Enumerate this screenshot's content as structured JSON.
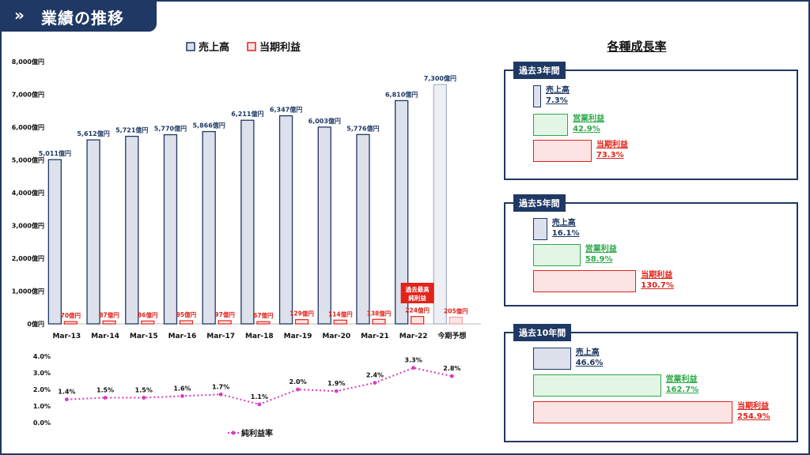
{
  "header": {
    "title": "業績の推移",
    "icon": "chevrons-right-icon"
  },
  "legend": {
    "sales": "売上高",
    "profit": "当期利益",
    "margin": "純利益率"
  },
  "annotation": {
    "line1": "過去最高",
    "line2": "純利益"
  },
  "colors": {
    "navy": "#1f3864",
    "sales_fill": "#dde1ec",
    "profit_stroke": "#e2231a",
    "profit_fill": "#fde4e4",
    "margin_line": "#d83ac4",
    "green": "#2ea84a",
    "green_fill": "#e3f6e6"
  },
  "chart_data": [
    {
      "type": "bar",
      "categories": [
        "Mar-13",
        "Mar-14",
        "Mar-15",
        "Mar-16",
        "Mar-17",
        "Mar-18",
        "Mar-19",
        "Mar-20",
        "Mar-21",
        "Mar-22",
        "今期予想"
      ],
      "series": [
        {
          "name": "売上高",
          "values": [
            5011,
            5612,
            5721,
            5770,
            5866,
            6211,
            6347,
            6003,
            5776,
            6810,
            7300
          ],
          "labels": [
            "5,011億円",
            "5,612億円",
            "5,721億円",
            "5,770億円",
            "5,866億円",
            "6,211億円",
            "6,347億円",
            "6,003億円",
            "5,776億円",
            "6,810億円",
            "7,300億円"
          ]
        },
        {
          "name": "当期利益",
          "values": [
            70,
            87,
            86,
            95,
            97,
            67,
            129,
            114,
            138,
            224,
            205
          ],
          "labels": [
            "70億円",
            "87億円",
            "86億円",
            "95億円",
            "97億円",
            "67億円",
            "129億円",
            "114億円",
            "138億円",
            "224億円",
            "205億円"
          ]
        }
      ],
      "ylim": [
        0,
        8000
      ],
      "yticks": [
        "0億円",
        "1,000億円",
        "2,000億円",
        "3,000億円",
        "4,000億円",
        "5,000億円",
        "6,000億円",
        "7,000億円",
        "8,000億円"
      ],
      "legend_position": "top"
    },
    {
      "type": "line",
      "series": [
        {
          "name": "純利益率",
          "values": [
            1.4,
            1.5,
            1.5,
            1.6,
            1.7,
            1.1,
            2.0,
            1.9,
            2.4,
            3.3,
            2.8
          ],
          "labels": [
            "1.4%",
            "1.5%",
            "1.5%",
            "1.6%",
            "1.7%",
            "1.1%",
            "2.0%",
            "1.9%",
            "2.4%",
            "3.3%",
            "2.8%"
          ]
        }
      ],
      "ylim": [
        0,
        4
      ],
      "yticks": [
        "0.0%",
        "1.0%",
        "2.0%",
        "3.0%",
        "4.0%"
      ],
      "legend_position": "bottom"
    },
    {
      "type": "bar",
      "title": "各種成長率",
      "panels": [
        {
          "period": "過去3年間",
          "items": [
            {
              "name": "売上高",
              "value": 7.3,
              "label": "7.3%"
            },
            {
              "name": "営業利益",
              "value": 42.9,
              "label": "42.9%"
            },
            {
              "name": "当期利益",
              "value": 73.3,
              "label": "73.3%"
            }
          ]
        },
        {
          "period": "過去5年間",
          "items": [
            {
              "name": "売上高",
              "value": 16.1,
              "label": "16.1%"
            },
            {
              "name": "営業利益",
              "value": 58.9,
              "label": "58.9%"
            },
            {
              "name": "当期利益",
              "value": 130.7,
              "label": "130.7%"
            }
          ]
        },
        {
          "period": "過去10年間",
          "items": [
            {
              "name": "売上高",
              "value": 46.6,
              "label": "46.6%"
            },
            {
              "name": "営業利益",
              "value": 162.7,
              "label": "162.7%"
            },
            {
              "name": "当期利益",
              "value": 254.9,
              "label": "254.9%"
            }
          ]
        }
      ]
    }
  ]
}
